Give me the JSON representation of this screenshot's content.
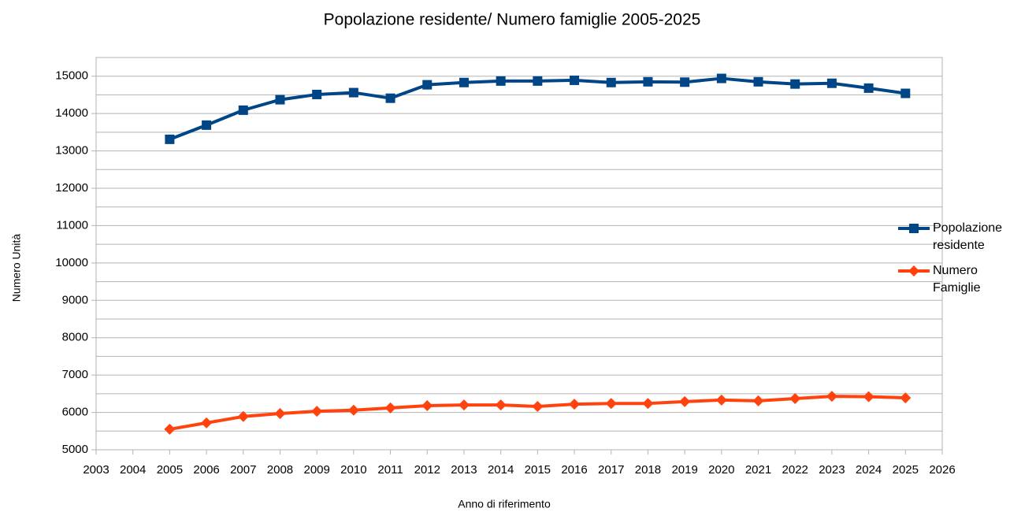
{
  "chart_data": {
    "type": "line",
    "title": "Popolazione residente/ Numero famiglie  2005-2025",
    "x_label": "Anno di riferimento",
    "y_label": "Numero Unità",
    "x": [
      2005,
      2006,
      2007,
      2008,
      2009,
      2010,
      2011,
      2012,
      2013,
      2014,
      2015,
      2016,
      2017,
      2018,
      2019,
      2020,
      2021,
      2022,
      2023,
      2024,
      2025
    ],
    "series": [
      {
        "name": "Popolazione residente",
        "color": "#004586",
        "marker": "square",
        "values": [
          13310,
          13690,
          14090,
          14370,
          14510,
          14560,
          14410,
          14770,
          14830,
          14870,
          14870,
          14890,
          14830,
          14850,
          14840,
          14940,
          14850,
          14790,
          14810,
          14680,
          14540
        ]
      },
      {
        "name": "Numero Famiglie",
        "color": "#ff420e",
        "marker": "diamond",
        "values": [
          5550,
          5720,
          5890,
          5970,
          6030,
          6060,
          6120,
          6180,
          6200,
          6200,
          6160,
          6220,
          6240,
          6240,
          6290,
          6330,
          6310,
          6370,
          6430,
          6420,
          6390
        ]
      }
    ],
    "xlim": [
      2003,
      2026
    ],
    "xticks": [
      2003,
      2004,
      2005,
      2006,
      2007,
      2008,
      2009,
      2010,
      2011,
      2012,
      2013,
      2014,
      2015,
      2016,
      2017,
      2018,
      2019,
      2020,
      2021,
      2022,
      2023,
      2024,
      2025,
      2026
    ],
    "ylim": [
      5000,
      15500
    ],
    "yticks": [
      5000,
      6000,
      7000,
      8000,
      9000,
      10000,
      11000,
      12000,
      13000,
      14000,
      15000
    ],
    "y_minor_ticks": [
      5500,
      6500,
      7500,
      8500,
      9500,
      10500,
      11500,
      12500,
      13500,
      14500,
      15500
    ],
    "grid": true,
    "legend": "right"
  }
}
